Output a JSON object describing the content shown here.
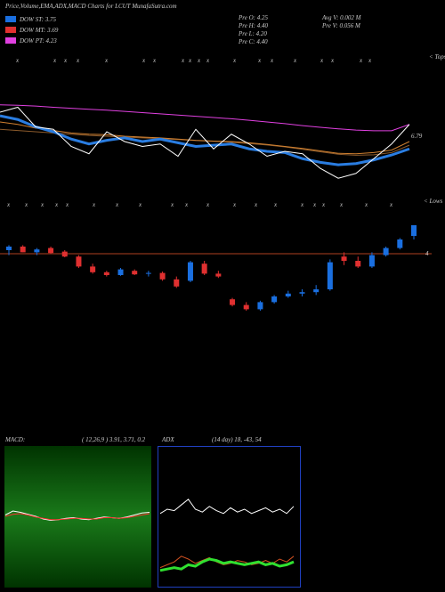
{
  "chart_data": [
    {
      "type": "line",
      "title": "Price,Volume,EMA,ADX,MACD Charts for LCUT MunafaSutra.com",
      "legend": [
        {
          "label": "DOW ST: 3.75",
          "color": "#1a6fe0"
        },
        {
          "label": "DOW MT: 3.69",
          "color": "#e03030"
        },
        {
          "label": "DOW PT: 4.23",
          "color": "#e040e0"
        }
      ],
      "info": [
        "Pre  O: 4.25",
        "Pre  H: 4.40",
        "Pre  L: 4.20",
        "Pre  C: 4.40",
        "Avg V: 0.002  M",
        "Pre  V: 0.056  M"
      ],
      "annotations": [
        "< Tops",
        "6.79",
        "< Lows"
      ],
      "ylim": [
        4,
        10
      ],
      "series": [
        {
          "color": "#8b5a2b",
          "values": [
            6.9,
            6.85,
            6.8,
            6.75,
            6.7,
            6.65,
            6.62,
            6.58,
            6.55,
            6.52,
            6.48,
            6.44,
            6.41,
            6.37,
            6.32,
            6.26,
            6.18,
            6.08,
            5.98,
            5.88,
            5.84,
            5.86,
            5.95,
            6.25
          ]
        },
        {
          "color": "#d08030",
          "values": [
            7.2,
            7.1,
            6.95,
            6.85,
            6.75,
            6.7,
            6.68,
            6.62,
            6.58,
            6.55,
            6.5,
            6.45,
            6.42,
            6.4,
            6.35,
            6.28,
            6.2,
            6.12,
            6.02,
            5.92,
            5.9,
            5.95,
            6.05,
            6.4
          ]
        },
        {
          "color": "#e040e0",
          "values": [
            7.9,
            7.88,
            7.85,
            7.8,
            7.76,
            7.72,
            7.68,
            7.63,
            7.58,
            7.53,
            7.48,
            7.43,
            7.38,
            7.33,
            7.27,
            7.2,
            7.13,
            7.05,
            6.98,
            6.92,
            6.87,
            6.84,
            6.84,
            7.1
          ]
        },
        {
          "color": "#2a7de1",
          "values": [
            7.45,
            7.3,
            7.0,
            6.8,
            6.5,
            6.3,
            6.45,
            6.55,
            6.4,
            6.5,
            6.35,
            6.2,
            6.25,
            6.3,
            6.1,
            6.0,
            5.95,
            5.7,
            5.55,
            5.45,
            5.5,
            5.65,
            5.85,
            6.1
          ]
        },
        {
          "color": "#ffffff",
          "values": [
            7.6,
            7.8,
            7.0,
            6.9,
            6.2,
            5.9,
            6.8,
            6.4,
            6.2,
            6.3,
            5.8,
            6.9,
            6.1,
            6.7,
            6.3,
            5.8,
            6.0,
            5.9,
            5.3,
            4.9,
            5.1,
            5.7,
            6.3,
            7.1
          ]
        }
      ]
    },
    {
      "type": "candlestick",
      "ylim": [
        3,
        4.5
      ],
      "annotations": [
        "4"
      ],
      "level": 4,
      "up_color": "#1a6fe0",
      "down_color": "#e03030",
      "open": [
        4.05,
        4.1,
        4.02,
        4.08,
        4.03,
        3.96,
        3.82,
        3.74,
        3.7,
        3.76,
        3.72,
        3.73,
        3.64,
        3.62,
        3.86,
        3.72,
        3.36,
        3.28,
        3.22,
        3.32,
        3.4,
        3.44,
        3.46,
        3.5,
        3.96,
        3.9,
        3.82,
        3.98,
        4.08,
        4.25
      ],
      "high": [
        4.12,
        4.12,
        4.08,
        4.1,
        4.05,
        3.98,
        3.86,
        3.76,
        3.8,
        3.78,
        3.76,
        3.75,
        3.68,
        3.9,
        3.9,
        3.76,
        3.38,
        3.32,
        3.34,
        3.42,
        3.48,
        3.5,
        3.56,
        3.92,
        4.02,
        3.96,
        4.02,
        4.1,
        4.22,
        4.4
      ],
      "low": [
        3.98,
        4.02,
        3.98,
        4.0,
        3.95,
        3.8,
        3.72,
        3.68,
        3.69,
        3.7,
        3.68,
        3.62,
        3.52,
        3.6,
        3.7,
        3.66,
        3.26,
        3.2,
        3.2,
        3.3,
        3.38,
        3.4,
        3.42,
        3.48,
        3.84,
        3.8,
        3.8,
        3.96,
        4.06,
        4.2
      ],
      "close": [
        4.1,
        4.02,
        4.06,
        4.01,
        3.96,
        3.82,
        3.74,
        3.7,
        3.78,
        3.71,
        3.73,
        3.64,
        3.54,
        3.88,
        3.72,
        3.68,
        3.28,
        3.22,
        3.32,
        3.4,
        3.44,
        3.46,
        3.5,
        3.88,
        3.9,
        3.82,
        3.98,
        4.08,
        4.2,
        4.4
      ]
    },
    {
      "type": "line",
      "title": "MACD:",
      "subtitle": "( 12,26,9 ) 3.91, 3.71, 0.2",
      "ylim": [
        -1,
        1
      ],
      "series": [
        {
          "color": "#ffffff",
          "values": [
            0.02,
            0.08,
            0.06,
            0.03,
            0.0,
            -0.04,
            -0.06,
            -0.05,
            -0.03,
            -0.02,
            -0.04,
            -0.05,
            -0.03,
            -0.01,
            -0.02,
            -0.03,
            -0.01,
            0.02,
            0.05,
            0.06
          ]
        },
        {
          "color": "#ff3030",
          "values": [
            0.0,
            0.03,
            0.04,
            0.02,
            -0.01,
            -0.03,
            -0.05,
            -0.05,
            -0.04,
            -0.03,
            -0.03,
            -0.04,
            -0.04,
            -0.02,
            -0.02,
            -0.03,
            -0.02,
            0.0,
            0.02,
            0.04
          ]
        }
      ]
    },
    {
      "type": "line",
      "title": "ADX",
      "subtitle": "(14  day) 18,  -43,  54",
      "ylim": [
        0,
        100
      ],
      "series": [
        {
          "color": "#ffffff",
          "values": [
            52,
            55,
            54,
            58,
            62,
            55,
            53,
            57,
            54,
            52,
            56,
            53,
            55,
            52,
            54,
            56,
            53,
            55,
            52,
            57
          ]
        },
        {
          "color": "#d05020",
          "values": [
            14,
            16,
            18,
            22,
            20,
            17,
            19,
            21,
            18,
            16,
            17,
            19,
            18,
            16,
            17,
            19,
            17,
            20,
            18,
            22
          ]
        },
        {
          "color": "#30e030",
          "values": [
            12,
            13,
            14,
            13,
            16,
            15,
            18,
            20,
            19,
            17,
            18,
            17,
            16,
            17,
            18,
            16,
            17,
            15,
            16,
            18
          ]
        }
      ]
    }
  ]
}
